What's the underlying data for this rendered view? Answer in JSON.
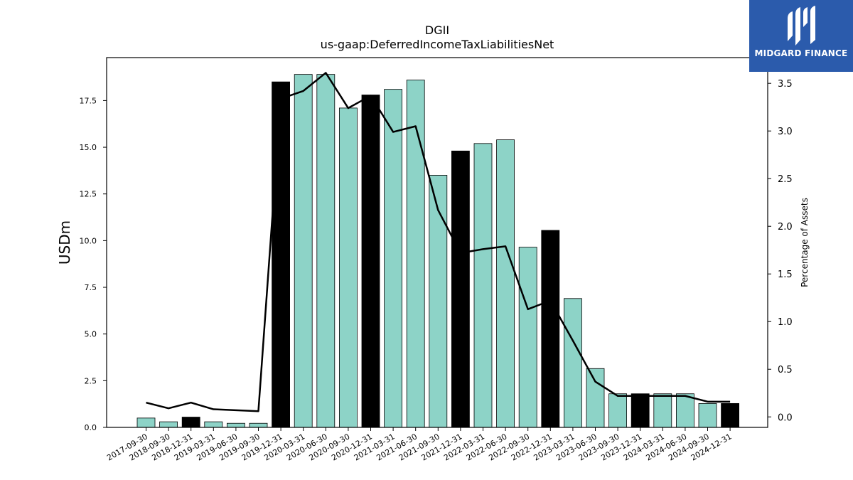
{
  "header": {
    "title": "DGII",
    "subtitle": "us-gaap:DeferredIncomeTaxLiabilitiesNet"
  },
  "logo": {
    "text": "MIDGARD FINANCE",
    "bg_color": "#2b5bac"
  },
  "chart_data": {
    "type": "bar",
    "title": "DGII",
    "subtitle": "us-gaap:DeferredIncomeTaxLiabilitiesNet",
    "ylabel": "USDm",
    "y2label": "Percentage of Assets",
    "ylim": [
      0,
      19.8
    ],
    "y2lim": [
      -0.11,
      3.77
    ],
    "yticks": [
      "0.0",
      "2.5",
      "5.0",
      "7.5",
      "10.0",
      "12.5",
      "15.0",
      "17.5"
    ],
    "y2ticks": [
      "0.0",
      "0.5",
      "1.0",
      "1.5",
      "2.0",
      "2.5",
      "3.0",
      "3.5"
    ],
    "categories": [
      "2017-09-30",
      "2018-09-30",
      "2018-12-31",
      "2019-03-31",
      "2019-06-30",
      "2019-09-30",
      "2019-12-31",
      "2020-03-31",
      "2020-06-30",
      "2020-09-30",
      "2020-12-31",
      "2021-03-31",
      "2021-06-30",
      "2021-09-30",
      "2021-12-31",
      "2022-03-31",
      "2022-06-30",
      "2022-09-30",
      "2022-12-31",
      "2023-03-31",
      "2023-06-30",
      "2023-09-30",
      "2023-12-31",
      "2024-03-31",
      "2024-06-30",
      "2024-09-30",
      "2024-12-31"
    ],
    "series": [
      {
        "kind": "bar",
        "values": [
          0.5,
          0.3,
          0.55,
          0.3,
          0.22,
          0.22,
          18.5,
          18.9,
          18.9,
          17.1,
          17.8,
          18.1,
          18.6,
          13.5,
          14.8,
          15.2,
          15.4,
          9.65,
          10.55,
          6.9,
          3.15,
          1.8,
          1.8,
          1.8,
          1.8,
          1.28,
          1.28
        ],
        "highlight": [
          false,
          false,
          true,
          false,
          false,
          false,
          true,
          false,
          false,
          false,
          true,
          false,
          false,
          false,
          true,
          false,
          false,
          false,
          true,
          false,
          false,
          false,
          true,
          false,
          false,
          false,
          true
        ]
      },
      {
        "kind": "line",
        "axis": "right",
        "values": [
          0.15,
          0.09,
          0.15,
          0.08,
          0.07,
          0.06,
          3.34,
          3.42,
          3.61,
          3.24,
          3.37,
          2.99,
          3.05,
          2.17,
          1.72,
          1.76,
          1.79,
          1.13,
          1.22,
          0.8,
          0.37,
          0.22,
          0.22,
          0.22,
          0.22,
          0.16,
          0.16
        ]
      }
    ],
    "colors": {
      "bar": "#8dd3c7",
      "bar_highlight": "#000000",
      "line": "#000000",
      "edge": "#000000"
    },
    "grid": false,
    "legend": "none"
  }
}
